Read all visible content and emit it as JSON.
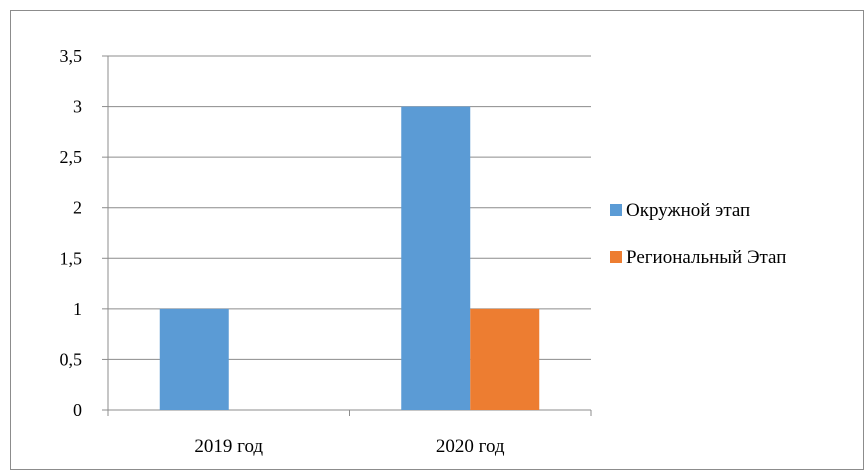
{
  "chart_data": {
    "type": "bar",
    "categories": [
      "2019 год",
      "2020 год"
    ],
    "series": [
      {
        "name": "Окружной этап",
        "values": [
          1,
          3
        ],
        "color": "#5b9bd5"
      },
      {
        "name": "Региональный Этап",
        "values": [
          0,
          1
        ],
        "color": "#ed7d31"
      }
    ],
    "ylim": [
      0,
      3.5
    ],
    "yticks": [
      "0",
      "0,5",
      "1",
      "1,5",
      "2",
      "2,5",
      "3",
      "3,5"
    ],
    "grid": true,
    "legend_position": "right"
  }
}
